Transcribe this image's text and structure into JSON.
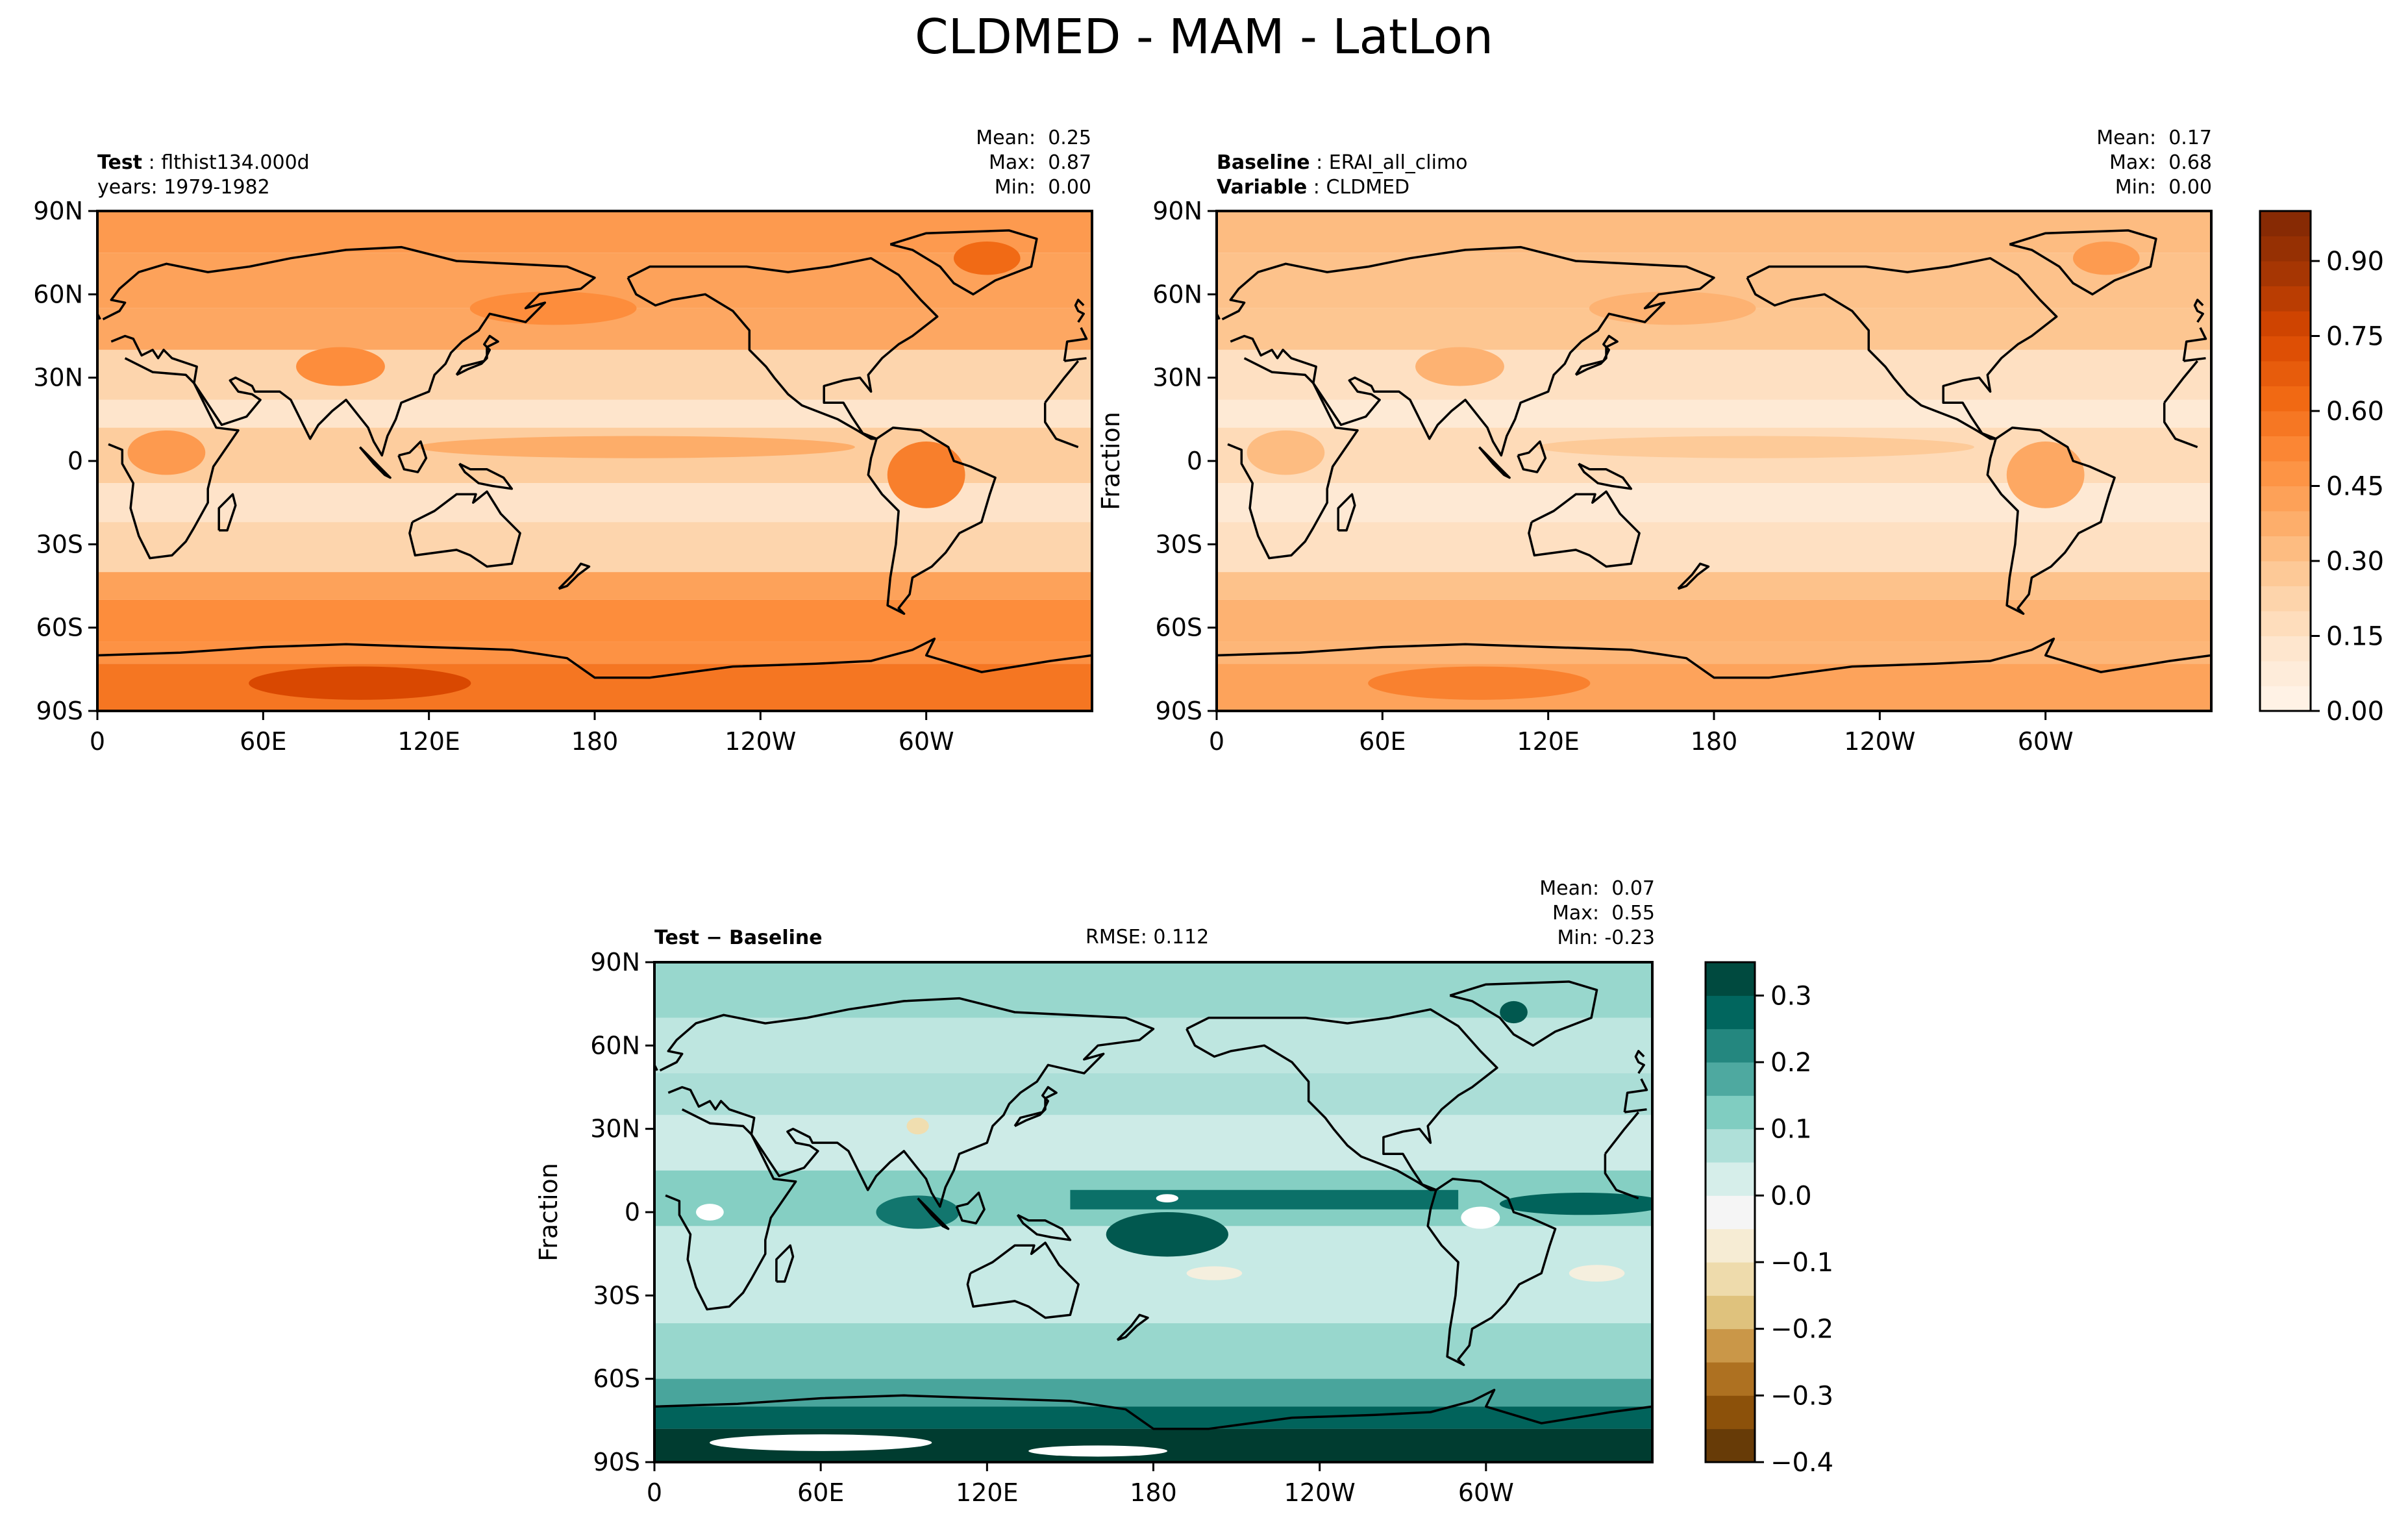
{
  "figure_title": "CLDMED - MAM - LatLon",
  "panels": {
    "test": {
      "label_bold": "Test",
      "label_text": "flthist134.000d",
      "line2": "years: 1979-1982",
      "stats": "Mean:  0.25\nMax:  0.87\nMin:  0.00"
    },
    "baseline": {
      "label1_bold": "Baseline",
      "label1_text": "ERAI_all_climo",
      "label2_bold": "Variable",
      "label2_text": "CLDMED",
      "ylabel": "Fraction",
      "stats": "Mean:  0.17\nMax:  0.68\nMin:  0.00"
    },
    "diff": {
      "label_bold": "Test − Baseline",
      "rmse": "RMSE: 0.112",
      "ylabel": "Fraction",
      "stats": "Mean:  0.07\nMax:  0.55\nMin: -0.23"
    }
  },
  "colors": {
    "oranges": [
      "#fff5eb",
      "#fee6ce",
      "#fdd0a2",
      "#fdae6b",
      "#fd8d3c",
      "#f16913",
      "#d94801",
      "#a63603",
      "#7f2704"
    ],
    "brbg": [
      "#543005",
      "#8c510a",
      "#bf812d",
      "#dfc27d",
      "#f6e8c3",
      "#f5f5f5",
      "#c7eae5",
      "#80cdc1",
      "#35978f",
      "#01665e",
      "#003c30"
    ],
    "coast": "#000000"
  },
  "chart_data": [
    {
      "type": "heatmap",
      "name": "Test",
      "title": "Test : flthist134.000d",
      "xlabel": "",
      "ylabel": "",
      "x_ticks": [
        "0",
        "60E",
        "120E",
        "180",
        "120W",
        "60W"
      ],
      "x_tick_values": [
        0,
        60,
        120,
        180,
        240,
        300
      ],
      "y_ticks": [
        "90N",
        "60N",
        "30N",
        "0",
        "30S",
        "60S",
        "90S"
      ],
      "y_tick_values": [
        90,
        60,
        30,
        0,
        -30,
        -60,
        -90
      ],
      "xlim": [
        0,
        360
      ],
      "ylim": [
        -90,
        90
      ],
      "colormap": "Oranges",
      "clim": [
        0.0,
        1.0
      ],
      "mean": 0.25,
      "max": 0.87,
      "min": 0.0
    },
    {
      "type": "heatmap",
      "name": "Baseline",
      "title": "Baseline : ERAI_all_climo",
      "xlabel": "",
      "ylabel": "Fraction",
      "x_ticks": [
        "0",
        "60E",
        "120E",
        "180",
        "120W",
        "60W"
      ],
      "x_tick_values": [
        0,
        60,
        120,
        180,
        240,
        300
      ],
      "y_ticks": [
        "90N",
        "60N",
        "30N",
        "0",
        "30S",
        "60S",
        "90S"
      ],
      "y_tick_values": [
        90,
        60,
        30,
        0,
        -30,
        -60,
        -90
      ],
      "xlim": [
        0,
        360
      ],
      "ylim": [
        -90,
        90
      ],
      "colormap": "Oranges",
      "clim": [
        0.0,
        1.0
      ],
      "colorbar_ticks": [
        "0.00",
        "0.15",
        "0.30",
        "0.45",
        "0.60",
        "0.75",
        "0.90"
      ],
      "colorbar_tick_values": [
        0.0,
        0.15,
        0.3,
        0.45,
        0.6,
        0.75,
        0.9
      ],
      "mean": 0.17,
      "max": 0.68,
      "min": 0.0
    },
    {
      "type": "heatmap",
      "name": "Test - Baseline",
      "title": "Test − Baseline",
      "xlabel": "",
      "ylabel": "Fraction",
      "x_ticks": [
        "0",
        "60E",
        "120E",
        "180",
        "120W",
        "60W"
      ],
      "x_tick_values": [
        0,
        60,
        120,
        180,
        240,
        300
      ],
      "y_ticks": [
        "90N",
        "60N",
        "30N",
        "0",
        "30S",
        "60S",
        "90S"
      ],
      "y_tick_values": [
        90,
        60,
        30,
        0,
        -30,
        -60,
        -90
      ],
      "xlim": [
        0,
        360
      ],
      "ylim": [
        -90,
        90
      ],
      "colormap": "BrBG",
      "clim": [
        -0.4,
        0.35
      ],
      "colorbar_ticks": [
        "0.3",
        "0.2",
        "0.1",
        "0.0",
        "−0.1",
        "−0.2",
        "−0.3",
        "−0.4"
      ],
      "colorbar_tick_values": [
        0.3,
        0.2,
        0.1,
        0.0,
        -0.1,
        -0.2,
        -0.3,
        -0.4
      ],
      "rmse": 0.112,
      "mean": 0.07,
      "max": 0.55,
      "min": -0.23
    }
  ]
}
